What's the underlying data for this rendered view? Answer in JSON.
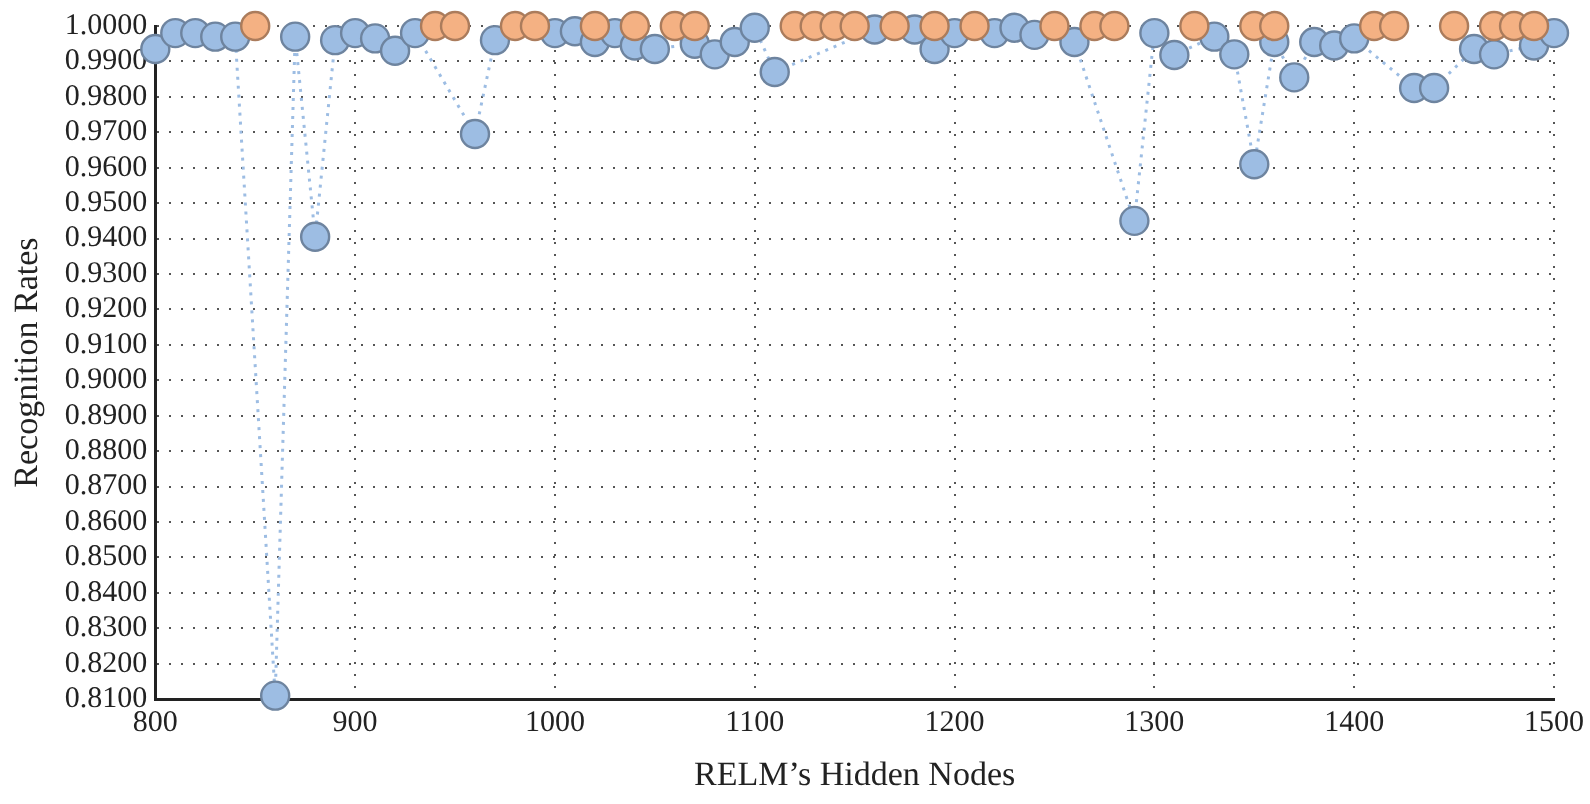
{
  "chart_data": {
    "type": "line",
    "xlabel": "RELM’s Hidden Nodes",
    "ylabel": "Recognition Rates",
    "x": [
      800,
      810,
      820,
      830,
      840,
      850,
      860,
      870,
      880,
      890,
      900,
      910,
      920,
      930,
      940,
      950,
      960,
      970,
      980,
      990,
      1000,
      1010,
      1020,
      1030,
      1040,
      1050,
      1060,
      1070,
      1080,
      1090,
      1100,
      1110,
      1120,
      1130,
      1140,
      1150,
      1160,
      1170,
      1180,
      1190,
      1200,
      1210,
      1220,
      1230,
      1240,
      1250,
      1260,
      1270,
      1280,
      1290,
      1300,
      1310,
      1320,
      1330,
      1340,
      1350,
      1360,
      1370,
      1380,
      1390,
      1400,
      1410,
      1420,
      1430,
      1440,
      1450,
      1460,
      1470,
      1480,
      1490,
      1500
    ],
    "series": [
      {
        "color": "#9dbde3",
        "marker": "circle",
        "line_style": "dotted",
        "values": [
          0.9935,
          0.998,
          0.998,
          0.997,
          0.997,
          null,
          0.811,
          0.997,
          0.9405,
          0.996,
          0.998,
          0.9965,
          0.993,
          0.998,
          null,
          null,
          0.9695,
          0.996,
          null,
          null,
          0.998,
          0.9985,
          0.9955,
          0.998,
          0.9945,
          0.9935,
          null,
          0.995,
          0.992,
          0.9955,
          0.9995,
          0.987,
          null,
          null,
          null,
          null,
          0.999,
          null,
          0.999,
          0.9935,
          0.998,
          null,
          0.998,
          0.9995,
          0.9975,
          null,
          0.9955,
          null,
          null,
          0.945,
          0.998,
          0.9918,
          null,
          0.997,
          0.992,
          0.961,
          0.9955,
          0.9855,
          0.9955,
          0.9945,
          0.9965,
          null,
          null,
          0.9825,
          0.9825,
          null,
          0.9935,
          0.992,
          null,
          0.9945,
          0.998
        ]
      },
      {
        "type": "scatter",
        "color": "#f4b183",
        "marker": "circle",
        "x": [
          850,
          940,
          950,
          980,
          990,
          1020,
          1040,
          1060,
          1070,
          1120,
          1130,
          1140,
          1150,
          1170,
          1190,
          1210,
          1250,
          1270,
          1280,
          1320,
          1350,
          1360,
          1410,
          1420,
          1450,
          1470,
          1480,
          1490
        ],
        "values": [
          1,
          1,
          1,
          1,
          1,
          1,
          1,
          1,
          1,
          1,
          1,
          1,
          1,
          1,
          1,
          1,
          1,
          1,
          1,
          1,
          1,
          1,
          1,
          1,
          1,
          1,
          1,
          1
        ]
      }
    ],
    "xlim": [
      800,
      1500
    ],
    "xticks": [
      800,
      900,
      1000,
      1100,
      1200,
      1300,
      1400,
      1500
    ],
    "ylim": [
      0.81,
      1.0
    ],
    "yticks": [
      {
        "value": 0.81,
        "label": "0.8100"
      },
      {
        "value": 0.82,
        "label": "0.8200"
      },
      {
        "value": 0.83,
        "label": "0.8300"
      },
      {
        "value": 0.84,
        "label": "0.8400"
      },
      {
        "value": 0.85,
        "label": "0.8500"
      },
      {
        "value": 0.86,
        "label": "0.8600"
      },
      {
        "value": 0.87,
        "label": "0.8700"
      },
      {
        "value": 0.88,
        "label": "0.8800"
      },
      {
        "value": 0.89,
        "label": "0.8900"
      },
      {
        "value": 0.9,
        "label": "0.9000"
      },
      {
        "value": 0.91,
        "label": "0.9100"
      },
      {
        "value": 0.92,
        "label": "0.9200"
      },
      {
        "value": 0.93,
        "label": "0.9300"
      },
      {
        "value": 0.94,
        "label": "0.9400"
      },
      {
        "value": 0.95,
        "label": "0.9500"
      },
      {
        "value": 0.96,
        "label": "0.9600"
      },
      {
        "value": 0.97,
        "label": "0.9700"
      },
      {
        "value": 0.98,
        "label": "0.9800"
      },
      {
        "value": 0.99,
        "label": "0.9900"
      },
      {
        "value": 1.0,
        "label": "1.0000"
      }
    ],
    "grid": true,
    "legend": false
  }
}
